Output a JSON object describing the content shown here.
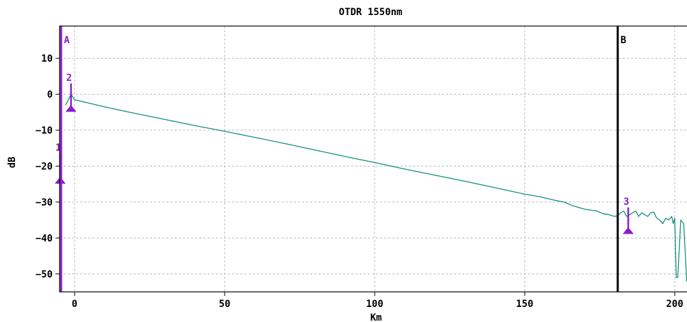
{
  "chart_data": {
    "type": "line",
    "title": "OTDR 1550nm",
    "xlabel": "Km",
    "ylabel": "dB",
    "xlim": [
      -5,
      205
    ],
    "ylim": [
      -55,
      19
    ],
    "grid": true,
    "x_ticks": [
      0,
      50,
      100,
      150,
      200
    ],
    "x_tick_labels": [
      "0",
      "50",
      "100",
      "150",
      "200"
    ],
    "y_ticks": [
      10,
      0,
      -10,
      -20,
      -30,
      -40,
      -50
    ],
    "y_tick_labels": [
      "10",
      "0",
      "−10",
      "−20",
      "−30",
      "−40",
      "−50"
    ],
    "series": [
      {
        "color": "#138f78",
        "x": [
          -3,
          -1.2,
          0,
          5,
          10,
          20,
          30,
          40,
          50,
          60,
          70,
          80,
          90,
          100,
          110,
          120,
          130,
          140,
          150,
          155,
          160,
          163,
          166,
          170,
          174,
          176,
          178,
          180,
          181,
          182,
          183,
          184,
          185,
          186,
          187,
          188,
          189,
          190,
          191,
          192,
          193,
          194,
          195,
          196,
          197,
          198,
          199,
          199.5,
          200,
          200.5,
          201,
          202,
          203,
          204,
          205
        ],
        "y": [
          -3,
          0,
          -1.5,
          -2.5,
          -3.5,
          -5.3,
          -7,
          -8.7,
          -10.3,
          -12,
          -13.7,
          -15.5,
          -17.3,
          -19,
          -20.8,
          -22.5,
          -24.2,
          -26,
          -27.8,
          -28.5,
          -29.5,
          -30,
          -31,
          -32,
          -32.5,
          -33.2,
          -33.5,
          -34,
          -33.8,
          -33,
          -32.5,
          -34,
          -33.5,
          -33,
          -32.5,
          -34,
          -33,
          -33.5,
          -34,
          -33,
          -32.8,
          -34.5,
          -35,
          -36,
          -34.5,
          -35,
          -34,
          -36,
          -34.5,
          -51,
          -51,
          -35,
          -36,
          -52,
          -52
        ]
      }
    ],
    "cursors": [
      {
        "label": "A",
        "x": -4.5,
        "color": "#8a1fc8"
      },
      {
        "label": "B",
        "x": 181,
        "color": "#000000"
      }
    ],
    "event_markers": [
      {
        "label": "1",
        "x": -4.8,
        "y_top": -16.5,
        "y_bottom": -24.5
      },
      {
        "label": "2",
        "x": -1.2,
        "y_top": 3,
        "y_bottom": -4.5
      },
      {
        "label": "3",
        "x": 184.5,
        "y_top": -31.5,
        "y_bottom": -38.5
      }
    ]
  }
}
